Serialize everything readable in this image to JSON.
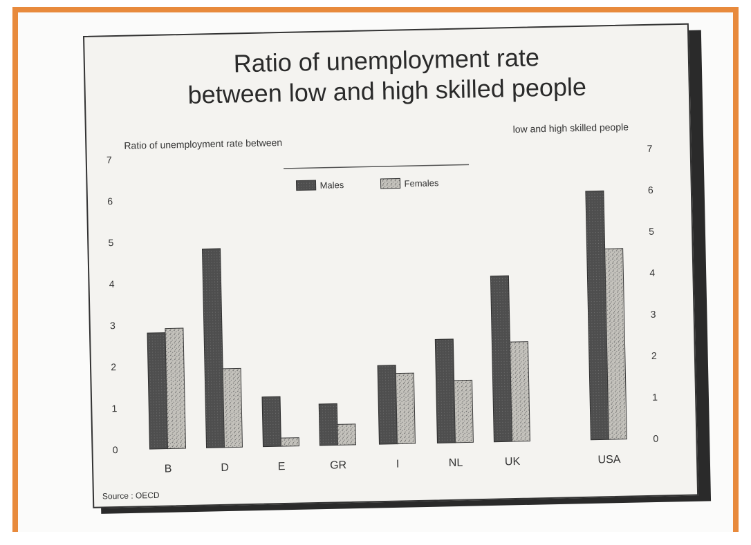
{
  "chart_data": {
    "type": "bar",
    "title": "Ratio of unemployment rate between low and high skilled people",
    "title_line1": "Ratio of unemployment rate",
    "title_line2": "between low and high skilled people",
    "ylabel_left": "Ratio of unemployment rate between",
    "ylabel_right": "low and high skilled people",
    "categories": [
      "B",
      "D",
      "E",
      "GR",
      "I",
      "NL",
      "UK",
      "USA"
    ],
    "series": [
      {
        "name": "Males",
        "values": [
          2.8,
          4.8,
          1.2,
          1.0,
          1.9,
          2.5,
          4.0,
          6.0
        ]
      },
      {
        "name": "Females",
        "values": [
          2.9,
          1.9,
          0.2,
          0.5,
          1.7,
          1.5,
          2.4,
          4.6
        ]
      }
    ],
    "ylim": [
      0,
      7
    ],
    "yticks": [
      "0",
      "1",
      "2",
      "3",
      "4",
      "5",
      "6",
      "7"
    ],
    "legend_position": "top-center",
    "grid": false,
    "source": "Source : OECD",
    "colors": {
      "Males": "#4a4a4a",
      "Females": "#b8b6b0",
      "frame": "#e88a3c"
    }
  }
}
